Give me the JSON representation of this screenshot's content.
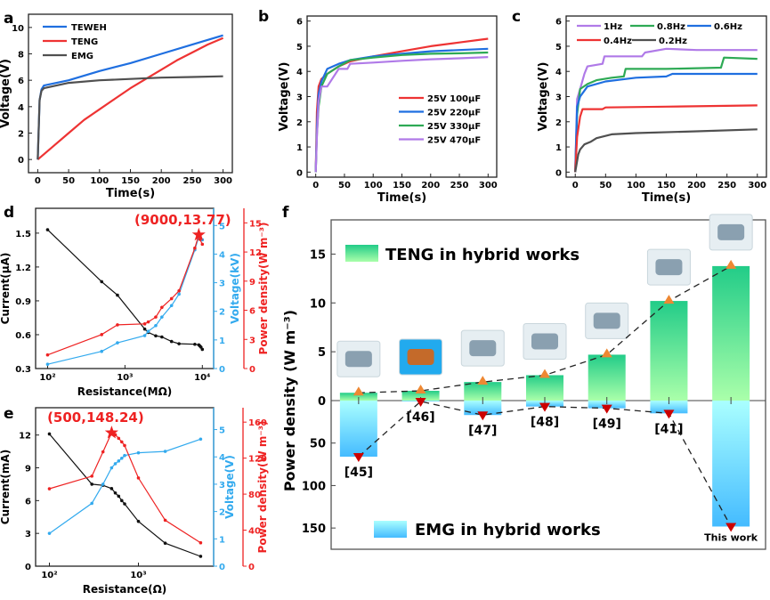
{
  "chart_data": [
    {
      "panel": "a",
      "type": "line",
      "xlabel": "Time(s)",
      "ylabel": "Voltage(V)",
      "xlim": [
        -15,
        315
      ],
      "ylim": [
        -1,
        11
      ],
      "xticks": [
        0,
        50,
        100,
        150,
        200,
        250,
        300
      ],
      "yticks": [
        0,
        2,
        4,
        6,
        8,
        10
      ],
      "legend_position": "top-left",
      "series": [
        {
          "name": "TEWEH",
          "color": "#1f6fe0",
          "x": [
            0,
            3,
            6,
            10,
            20,
            50,
            100,
            150,
            200,
            250,
            300
          ],
          "y": [
            0,
            4.5,
            5.3,
            5.6,
            5.7,
            6.0,
            6.7,
            7.3,
            8.0,
            8.7,
            9.4
          ]
        },
        {
          "name": "TENG",
          "color": "#ee3333",
          "x": [
            0,
            25,
            50,
            75,
            100,
            125,
            150,
            175,
            200,
            225,
            250,
            275,
            300
          ],
          "y": [
            0,
            1.0,
            2.0,
            3.0,
            3.8,
            4.6,
            5.4,
            6.1,
            6.8,
            7.5,
            8.1,
            8.7,
            9.2
          ]
        },
        {
          "name": "EMG",
          "color": "#505050",
          "x": [
            0,
            3,
            6,
            10,
            20,
            50,
            100,
            150,
            200,
            250,
            300
          ],
          "y": [
            0,
            4.5,
            5.2,
            5.4,
            5.5,
            5.8,
            6.0,
            6.1,
            6.2,
            6.25,
            6.3
          ]
        }
      ]
    },
    {
      "panel": "b",
      "type": "line",
      "xlabel": "Time(s)",
      "ylabel": "Voltage(V)",
      "xlim": [
        -15,
        315
      ],
      "ylim": [
        -0.2,
        6.2
      ],
      "xticks": [
        0,
        50,
        100,
        150,
        200,
        250,
        300
      ],
      "yticks": [
        0,
        1,
        2,
        3,
        4,
        5,
        6
      ],
      "legend_position": "center-right",
      "series": [
        {
          "name": "25V 100μF",
          "color": "#ee3333",
          "x": [
            0,
            2,
            5,
            10,
            20,
            40,
            60,
            100,
            150,
            200,
            250,
            300
          ],
          "y": [
            0,
            2.4,
            3.4,
            3.7,
            3.9,
            4.2,
            4.4,
            4.6,
            4.8,
            5.0,
            5.15,
            5.3
          ]
        },
        {
          "name": "25V 220μF",
          "color": "#1f6fe0",
          "x": [
            0,
            2,
            5,
            10,
            20,
            40,
            60,
            100,
            150,
            200,
            250,
            300
          ],
          "y": [
            0,
            1.8,
            3.1,
            3.6,
            4.1,
            4.3,
            4.45,
            4.6,
            4.7,
            4.8,
            4.85,
            4.9
          ]
        },
        {
          "name": "25V 330μF",
          "color": "#2eaa55",
          "x": [
            0,
            2,
            5,
            10,
            20,
            40,
            60,
            100,
            150,
            200,
            250,
            300
          ],
          "y": [
            0,
            1.5,
            2.6,
            3.4,
            3.9,
            4.2,
            4.45,
            4.55,
            4.65,
            4.7,
            4.72,
            4.75
          ]
        },
        {
          "name": "25V 470μF",
          "color": "#b07ae8",
          "x": [
            0,
            2,
            5,
            10,
            20,
            40,
            55,
            60,
            100,
            150,
            200,
            250,
            300
          ],
          "y": [
            0,
            1.4,
            2.8,
            3.4,
            3.4,
            4.1,
            4.1,
            4.3,
            4.35,
            4.42,
            4.48,
            4.52,
            4.57
          ]
        }
      ]
    },
    {
      "panel": "c",
      "type": "line",
      "xlabel": "Time(s)",
      "ylabel": "Voltage(V)",
      "xlim": [
        -15,
        315
      ],
      "ylim": [
        -0.2,
        6.2
      ],
      "xticks": [
        0,
        50,
        100,
        150,
        200,
        250,
        300
      ],
      "yticks": [
        0,
        1,
        2,
        3,
        4,
        5,
        6
      ],
      "legend_position": "top",
      "series": [
        {
          "name": "1Hz",
          "color": "#b07ae8",
          "x": [
            0,
            3,
            8,
            15,
            20,
            45,
            48,
            110,
            115,
            150,
            200,
            300
          ],
          "y": [
            0,
            2.9,
            3.3,
            3.9,
            4.2,
            4.3,
            4.6,
            4.6,
            4.75,
            4.9,
            4.85,
            4.85
          ]
        },
        {
          "name": "0.8Hz",
          "color": "#2eaa55",
          "x": [
            0,
            3,
            8,
            20,
            35,
            60,
            80,
            83,
            150,
            240,
            245,
            300
          ],
          "y": [
            0,
            2.3,
            3.3,
            3.5,
            3.65,
            3.75,
            3.8,
            4.1,
            4.1,
            4.15,
            4.55,
            4.5
          ]
        },
        {
          "name": "0.6Hz",
          "color": "#1f6fe0",
          "x": [
            0,
            3,
            8,
            20,
            50,
            100,
            150,
            160,
            300
          ],
          "y": [
            0,
            2.6,
            3.0,
            3.4,
            3.6,
            3.75,
            3.8,
            3.9,
            3.9
          ]
        },
        {
          "name": "0.4Hz",
          "color": "#ee3333",
          "x": [
            0,
            3,
            8,
            12,
            45,
            50,
            150,
            300
          ],
          "y": [
            0,
            1.4,
            2.2,
            2.5,
            2.5,
            2.57,
            2.6,
            2.65
          ]
        },
        {
          "name": "0.2Hz",
          "color": "#505050",
          "x": [
            0,
            5,
            8,
            15,
            25,
            35,
            60,
            100,
            200,
            300
          ],
          "y": [
            0,
            0.7,
            0.9,
            1.1,
            1.2,
            1.35,
            1.5,
            1.55,
            1.62,
            1.7
          ]
        }
      ]
    },
    {
      "panel": "d",
      "type": "line",
      "xlabel": "Resistance(MΩ)",
      "xscale": "log",
      "xlim": [
        70,
        14000
      ],
      "xticks": [
        "10²",
        "10³",
        "10⁴"
      ],
      "axes": [
        {
          "label": "Current(μA)",
          "side": "left",
          "color": "#000000",
          "ylim": [
            0.3,
            1.72
          ],
          "ticks": [
            0.3,
            0.6,
            0.9,
            1.2,
            1.5
          ]
        },
        {
          "label": "Voltage(kV)",
          "side": "right",
          "color": "#33aaee",
          "ylim": [
            0,
            5.6
          ],
          "ticks": [
            0,
            1,
            2,
            3,
            4,
            5
          ]
        },
        {
          "label": "Power density(W m⁻³)",
          "side": "right-outer",
          "color": "#ee2222",
          "ylim": [
            0,
            16.5
          ],
          "ticks": [
            0,
            3,
            6,
            9,
            12,
            15
          ]
        }
      ],
      "annotation": {
        "text": "(9000,13.77)",
        "x": 9000,
        "y": 13.77,
        "marker": "star",
        "color": "#ee2222"
      },
      "series": [
        {
          "name": "Current",
          "axis": 0,
          "color": "#111111",
          "x": [
            100,
            500,
            800,
            1800,
            2000,
            2500,
            3000,
            4000,
            5000,
            8000,
            9000,
            9300,
            9600,
            10000
          ],
          "y": [
            1.53,
            1.07,
            0.95,
            0.65,
            0.62,
            0.59,
            0.58,
            0.54,
            0.52,
            0.515,
            0.51,
            0.5,
            0.49,
            0.47
          ]
        },
        {
          "name": "Voltage",
          "axis": 1,
          "color": "#33aaee",
          "x": [
            100,
            500,
            800,
            1800,
            2000,
            2500,
            3000,
            4000,
            5000,
            8000,
            9000,
            10000
          ],
          "y": [
            0.15,
            0.6,
            0.9,
            1.15,
            1.3,
            1.5,
            1.8,
            2.2,
            2.6,
            4.15,
            4.6,
            4.5
          ]
        },
        {
          "name": "Power density",
          "axis": 2,
          "color": "#ee2222",
          "x": [
            100,
            500,
            800,
            1800,
            2000,
            2500,
            3000,
            4000,
            5000,
            8000,
            9000,
            9300,
            10000
          ],
          "y": [
            1.4,
            3.5,
            4.5,
            4.6,
            4.8,
            5.3,
            6.3,
            7.2,
            8.0,
            12.4,
            13.77,
            13.3,
            12.8
          ]
        }
      ]
    },
    {
      "panel": "e",
      "type": "line",
      "xlabel": "Resistance(Ω)",
      "xscale": "log",
      "xlim": [
        70,
        7000
      ],
      "xticks": [
        "10²",
        "10³"
      ],
      "axes": [
        {
          "label": "Current(mA)",
          "side": "left",
          "color": "#000000",
          "ylim": [
            0,
            14.5
          ],
          "ticks": [
            0,
            3,
            6,
            9,
            12
          ]
        },
        {
          "label": "Voltage(V)",
          "side": "right",
          "color": "#33aaee",
          "ylim": [
            0,
            5.8
          ],
          "ticks": [
            0,
            1,
            2,
            3,
            4,
            5
          ]
        },
        {
          "label": "Power density(W m⁻³)",
          "side": "right-outer",
          "color": "#ee2222",
          "ylim": [
            0,
            176
          ],
          "ticks": [
            0,
            40,
            80,
            120,
            160
          ]
        }
      ],
      "annotation": {
        "text": "(500,148.24)",
        "x": 500,
        "y": 148.24,
        "marker": "star",
        "color": "#ee2222"
      },
      "series": [
        {
          "name": "Current",
          "axis": 0,
          "color": "#111111",
          "x": [
            100,
            300,
            400,
            500,
            550,
            600,
            650,
            700,
            1000,
            2000,
            5000
          ],
          "y": [
            12.1,
            7.5,
            7.4,
            7.1,
            6.7,
            6.4,
            6.0,
            5.7,
            4.1,
            2.1,
            0.9
          ]
        },
        {
          "name": "Voltage",
          "axis": 1,
          "color": "#33aaee",
          "x": [
            100,
            300,
            400,
            500,
            550,
            600,
            650,
            700,
            1000,
            2000,
            5000
          ],
          "y": [
            1.2,
            2.3,
            3.0,
            3.6,
            3.75,
            3.85,
            3.95,
            4.05,
            4.15,
            4.2,
            4.65
          ]
        },
        {
          "name": "Power density",
          "axis": 2,
          "color": "#ee2222",
          "x": [
            100,
            300,
            400,
            500,
            550,
            600,
            650,
            700,
            1000,
            2000,
            5000
          ],
          "y": [
            86,
            100,
            127,
            148.24,
            146,
            142,
            138,
            134,
            98,
            51,
            26
          ]
        }
      ]
    },
    {
      "panel": "f",
      "type": "bar",
      "ylabel": "Power density (W m⁻³)",
      "categories": [
        "[45]",
        "[46]",
        "[47]",
        "[48]",
        "[49]",
        "[41]",
        "This work"
      ],
      "upper_axis": {
        "ylim": [
          0,
          18.5
        ],
        "ticks": [
          0,
          5,
          10,
          15
        ]
      },
      "lower_axis": {
        "ylim": [
          0,
          175
        ],
        "ticks": [
          50,
          100,
          150
        ],
        "direction": "down"
      },
      "series": [
        {
          "name": "TENG in hybrid works",
          "color_top": "#22cc88",
          "color_bottom": "#aaffaa",
          "values": [
            0.8,
            1.0,
            1.9,
            2.6,
            4.7,
            10.2,
            13.77
          ]
        },
        {
          "name": "EMG in hybrid works",
          "color_top": "#aaffff",
          "color_bottom": "#44bbff",
          "values": [
            66,
            1,
            17,
            7,
            9,
            15,
            148.24
          ]
        }
      ],
      "marker_teng": "#ee8833",
      "marker_emg": "#cc0000",
      "legend_position": "top-left and bottom-left"
    }
  ],
  "panel_labels": [
    "a",
    "b",
    "c",
    "d",
    "e",
    "f"
  ],
  "thumbnails": [
    "device-45",
    "device-46",
    "device-47",
    "device-48",
    "device-49",
    "device-41",
    "this-work-device"
  ]
}
